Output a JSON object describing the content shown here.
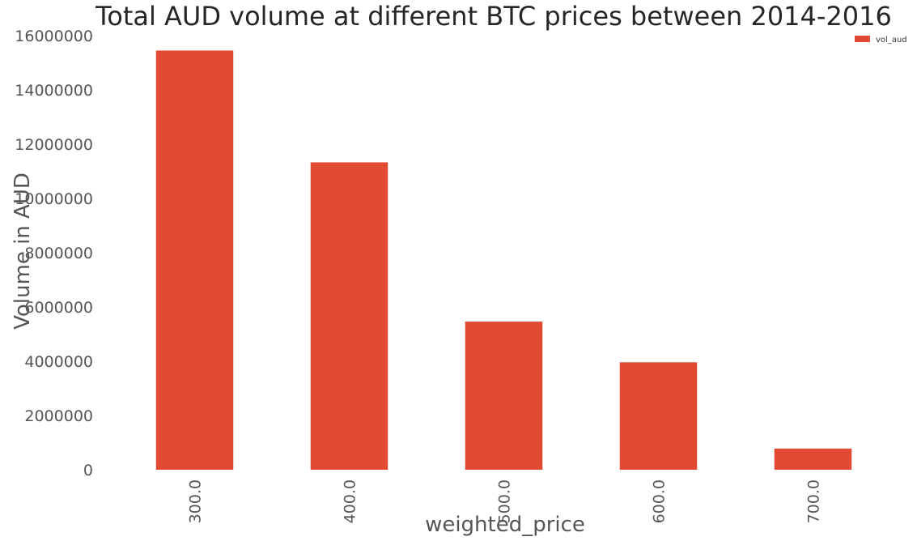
{
  "chart_data": {
    "type": "bar",
    "title": "Total AUD volume at different BTC prices between 2014-2016",
    "xlabel": "weighted_price",
    "ylabel": "Volume in AUD",
    "categories": [
      "300.0",
      "400.0",
      "500.0",
      "600.0",
      "700.0"
    ],
    "series": [
      {
        "name": "vol_aud",
        "values": [
          15450000,
          11330000,
          5460000,
          3960000,
          780000
        ],
        "color": "#e24a33"
      }
    ],
    "ylim": [
      0,
      16000000
    ],
    "yticks": [
      "0",
      "2000000",
      "4000000",
      "6000000",
      "8000000",
      "10000000",
      "12000000",
      "14000000",
      "16000000"
    ],
    "grid": false,
    "legend_position": "top-right"
  }
}
